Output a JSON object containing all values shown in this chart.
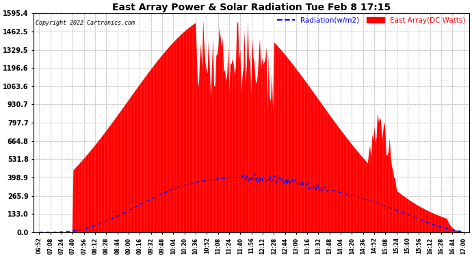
{
  "title": "East Array Power & Solar Radiation Tue Feb 8 17:15",
  "copyright": "Copyright 2022 Cartronics.com",
  "legend_radiation": "Radiation(w/m2)",
  "legend_east_array": "East Array(DC Watts)",
  "yticks": [
    0.0,
    133.0,
    265.9,
    398.9,
    531.8,
    664.8,
    797.7,
    930.7,
    1063.6,
    1196.6,
    1329.5,
    1462.5,
    1595.4
  ],
  "ymax": 1595.4,
  "ymin": 0.0,
  "background_color": "#ffffff",
  "plot_bg_color": "#ffffff",
  "grid_color": "#aaaaaa",
  "red_fill_color": "#ff0000",
  "blue_line_color": "#0000ff",
  "title_color": "#000000",
  "copyright_color": "#000000",
  "xtick_labels": [
    "06:52",
    "07:08",
    "07:24",
    "07:40",
    "07:56",
    "08:12",
    "08:28",
    "08:44",
    "09:00",
    "09:16",
    "09:32",
    "09:48",
    "10:04",
    "10:20",
    "10:36",
    "10:52",
    "11:08",
    "11:24",
    "11:40",
    "11:56",
    "12:12",
    "12:28",
    "12:44",
    "13:00",
    "13:16",
    "13:32",
    "13:48",
    "14:04",
    "14:20",
    "14:36",
    "14:52",
    "15:08",
    "15:24",
    "15:40",
    "15:56",
    "16:12",
    "16:28",
    "16:44",
    "17:00"
  ],
  "figsize": [
    6.9,
    3.75
  ],
  "dpi": 100
}
